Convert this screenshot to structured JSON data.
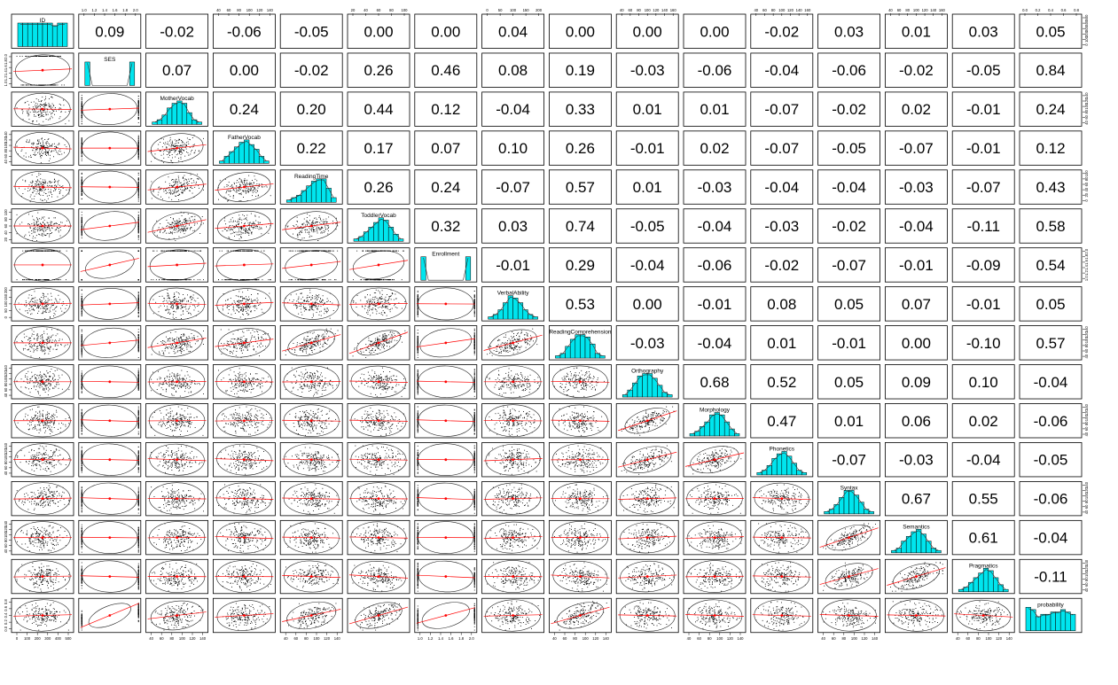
{
  "chart_data": {
    "type": "scatter-matrix",
    "title": "",
    "variables": [
      "ID",
      "SES",
      "MotherVocab",
      "FatherVocab",
      "ReadingTime",
      "ToddlerVocab",
      "Enrollment",
      "VerbalAbility",
      "ReadingComprehension",
      "Orthography",
      "Morphology",
      "Phonetics",
      "Syntax",
      "Semantics",
      "Pragmatics",
      "probability"
    ],
    "correlations": [
      [
        null,
        "0.09",
        "-0.02",
        "-0.06",
        "-0.05",
        "0.00",
        "0.00",
        "0.04",
        "0.00",
        "0.00",
        "0.00",
        "-0.02",
        "0.03",
        "0.01",
        "0.03",
        "0.05"
      ],
      [
        null,
        null,
        "0.07",
        "0.00",
        "-0.02",
        "0.26",
        "0.46",
        "0.08",
        "0.19",
        "-0.03",
        "-0.06",
        "-0.04",
        "-0.06",
        "-0.02",
        "-0.05",
        "0.84"
      ],
      [
        null,
        null,
        null,
        "0.24",
        "0.20",
        "0.44",
        "0.12",
        "-0.04",
        "0.33",
        "0.01",
        "0.01",
        "-0.07",
        "-0.02",
        "0.02",
        "-0.01",
        "0.24"
      ],
      [
        null,
        null,
        null,
        null,
        "0.22",
        "0.17",
        "0.07",
        "0.10",
        "0.26",
        "-0.01",
        "0.02",
        "-0.07",
        "-0.05",
        "-0.07",
        "-0.01",
        "0.12"
      ],
      [
        null,
        null,
        null,
        null,
        null,
        "0.26",
        "0.24",
        "-0.07",
        "0.57",
        "0.01",
        "-0.03",
        "-0.04",
        "-0.04",
        "-0.03",
        "-0.07",
        "0.43"
      ],
      [
        null,
        null,
        null,
        null,
        null,
        null,
        "0.32",
        "0.03",
        "0.74",
        "-0.05",
        "-0.04",
        "-0.03",
        "-0.02",
        "-0.04",
        "-0.11",
        "0.58"
      ],
      [
        null,
        null,
        null,
        null,
        null,
        null,
        null,
        "-0.01",
        "0.29",
        "-0.04",
        "-0.06",
        "-0.02",
        "-0.07",
        "-0.01",
        "-0.09",
        "0.54"
      ],
      [
        null,
        null,
        null,
        null,
        null,
        null,
        null,
        null,
        "0.53",
        "0.00",
        "-0.01",
        "0.08",
        "0.05",
        "0.07",
        "-0.01",
        "0.05"
      ],
      [
        null,
        null,
        null,
        null,
        null,
        null,
        null,
        null,
        null,
        "-0.03",
        "-0.04",
        "0.01",
        "-0.01",
        "0.00",
        "-0.10",
        "0.57"
      ],
      [
        null,
        null,
        null,
        null,
        null,
        null,
        null,
        null,
        null,
        null,
        "0.68",
        "0.52",
        "0.05",
        "0.09",
        "0.10",
        "-0.04"
      ],
      [
        null,
        null,
        null,
        null,
        null,
        null,
        null,
        null,
        null,
        null,
        null,
        "0.47",
        "0.01",
        "0.06",
        "0.02",
        "-0.06"
      ],
      [
        null,
        null,
        null,
        null,
        null,
        null,
        null,
        null,
        null,
        null,
        null,
        null,
        "-0.07",
        "-0.03",
        "-0.04",
        "-0.05"
      ],
      [
        null,
        null,
        null,
        null,
        null,
        null,
        null,
        null,
        null,
        null,
        null,
        null,
        null,
        "0.67",
        "0.55",
        "-0.06"
      ],
      [
        null,
        null,
        null,
        null,
        null,
        null,
        null,
        null,
        null,
        null,
        null,
        null,
        null,
        null,
        "0.61",
        "-0.04"
      ],
      [
        null,
        null,
        null,
        null,
        null,
        null,
        null,
        null,
        null,
        null,
        null,
        null,
        null,
        null,
        null,
        "-0.11"
      ],
      [
        null,
        null,
        null,
        null,
        null,
        null,
        null,
        null,
        null,
        null,
        null,
        null,
        null,
        null,
        null,
        null
      ]
    ],
    "histograms": {
      "ID": [
        9,
        9,
        9,
        9,
        9,
        9,
        9,
        8,
        9,
        9
      ],
      "SES": [
        10,
        0,
        0,
        0,
        0,
        0,
        0,
        0,
        0,
        10
      ],
      "MotherVocab": [
        1,
        2,
        4,
        7,
        9,
        10,
        9,
        5,
        2,
        1
      ],
      "FatherVocab": [
        1,
        3,
        5,
        7,
        9,
        10,
        8,
        6,
        3,
        1
      ],
      "ReadingTime": [
        1,
        2,
        3,
        5,
        7,
        9,
        10,
        10,
        6,
        2
      ],
      "ToddlerVocab": [
        1,
        2,
        4,
        6,
        8,
        10,
        9,
        6,
        3,
        1
      ],
      "Enrollment": [
        10,
        0,
        0,
        0,
        0,
        0,
        0,
        0,
        0,
        10
      ],
      "VerbalAbility": [
        1,
        2,
        4,
        7,
        10,
        9,
        7,
        4,
        2,
        1
      ],
      "ReadingComprehension": [
        1,
        2,
        5,
        8,
        10,
        10,
        9,
        6,
        2,
        1
      ],
      "Orthography": [
        1,
        3,
        6,
        9,
        10,
        10,
        8,
        5,
        2,
        1
      ],
      "Morphology": [
        1,
        2,
        4,
        6,
        9,
        10,
        9,
        6,
        3,
        1
      ],
      "Phonetics": [
        1,
        2,
        4,
        7,
        9,
        10,
        8,
        5,
        2,
        1
      ],
      "Syntax": [
        1,
        2,
        4,
        7,
        10,
        10,
        8,
        5,
        2,
        1
      ],
      "Semantics": [
        1,
        2,
        5,
        7,
        9,
        10,
        8,
        5,
        2,
        1
      ],
      "Pragmatics": [
        1,
        2,
        4,
        6,
        8,
        10,
        9,
        6,
        3,
        1
      ],
      "probability": [
        10,
        9,
        6,
        7,
        7,
        8,
        8,
        9,
        8,
        7
      ]
    },
    "axis_ticks": {
      "top": {
        "1": [
          "1.0",
          "1.2",
          "1.4",
          "1.6",
          "1.8",
          "2.0"
        ],
        "3": [
          "40",
          "60",
          "80",
          "100",
          "120",
          "140"
        ],
        "5": [
          "20",
          "40",
          "60",
          "80",
          "100"
        ],
        "7": [
          "0",
          "50",
          "100",
          "150",
          "200"
        ],
        "9": [
          "40",
          "60",
          "80",
          "100",
          "120",
          "140",
          "160"
        ],
        "11": [
          "40",
          "60",
          "80",
          "100",
          "120",
          "140",
          "160"
        ],
        "13": [
          "40",
          "60",
          "80",
          "100",
          "120",
          "140",
          "160"
        ],
        "15": [
          "0.0",
          "0.2",
          "0.4",
          "0.6",
          "0.8"
        ]
      },
      "right": {
        "0": [
          "0",
          "100",
          "200",
          "300",
          "400",
          "500"
        ],
        "2": [
          "40",
          "60",
          "80",
          "100",
          "120",
          "140"
        ],
        "4": [
          "0",
          "20",
          "40",
          "60",
          "80",
          "100"
        ],
        "6": [
          "1.0",
          "1.2",
          "1.4",
          "1.6",
          "1.8",
          "2.0"
        ],
        "8": [
          "40",
          "60",
          "80",
          "100",
          "120",
          "140"
        ],
        "10": [
          "40",
          "60",
          "80",
          "100",
          "120",
          "140"
        ],
        "12": [
          "40",
          "60",
          "80",
          "100",
          "120",
          "140"
        ],
        "14": [
          "40",
          "60",
          "80",
          "100",
          "120",
          "140"
        ]
      },
      "bottom": {
        "0": [
          "0",
          "100",
          "200",
          "300",
          "400",
          "500"
        ],
        "2": [
          "40",
          "60",
          "80",
          "100",
          "120",
          "140"
        ],
        "4": [
          "40",
          "60",
          "80",
          "100",
          "120",
          "140"
        ],
        "6": [
          "1.0",
          "1.2",
          "1.4",
          "1.6",
          "1.8",
          "2.0"
        ],
        "8": [
          "40",
          "60",
          "80",
          "100",
          "120",
          "140"
        ],
        "10": [
          "40",
          "60",
          "80",
          "100",
          "120",
          "140"
        ],
        "12": [
          "40",
          "60",
          "80",
          "100",
          "120",
          "140"
        ],
        "14": [
          "40",
          "60",
          "80",
          "100",
          "120",
          "140"
        ]
      },
      "left": {
        "1": [
          "1.0",
          "1.2",
          "1.4",
          "1.6",
          "1.8",
          "2.0"
        ],
        "3": [
          "40",
          "60",
          "80",
          "100",
          "120",
          "140"
        ],
        "5": [
          "20",
          "40",
          "60",
          "80",
          "100"
        ],
        "7": [
          "0",
          "50",
          "100",
          "150",
          "200"
        ],
        "9": [
          "40",
          "60",
          "80",
          "100",
          "120",
          "140"
        ],
        "11": [
          "40",
          "60",
          "80",
          "100",
          "120",
          "140"
        ],
        "13": [
          "40",
          "60",
          "80",
          "100",
          "120",
          "140"
        ],
        "15": [
          "0.0",
          "0.2",
          "0.4",
          "0.6",
          "0.8"
        ]
      }
    },
    "colors": {
      "histogram_fill": "#00e5ee",
      "fit_line": "#ff0000",
      "ellipse": "#000000",
      "points": "#000000",
      "panel_border": "#000000"
    },
    "grid": false,
    "legend": "none"
  }
}
